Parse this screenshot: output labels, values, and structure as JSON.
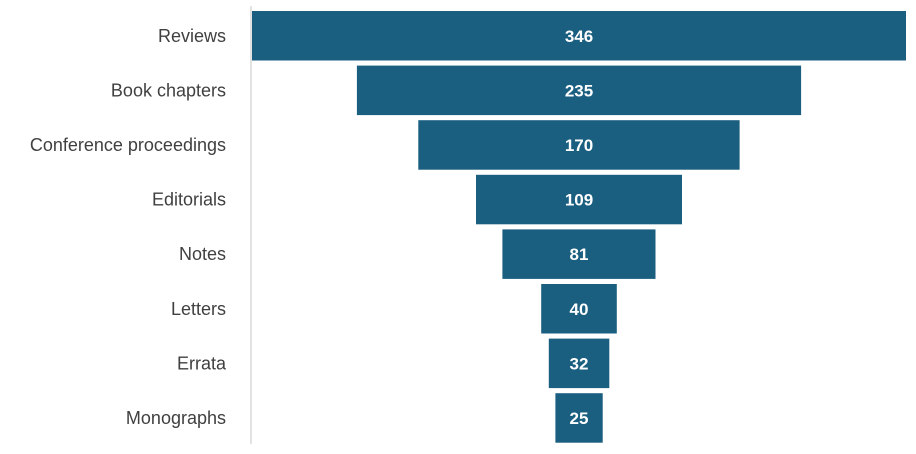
{
  "chart_data": {
    "type": "bar",
    "subtype": "funnel",
    "categories": [
      "Reviews",
      "Book chapters",
      "Conference proceedings",
      "Editorials",
      "Notes",
      "Letters",
      "Errata",
      "Monographs"
    ],
    "values": [
      346,
      235,
      170,
      109,
      81,
      40,
      32,
      25
    ],
    "data_labels": [
      "346",
      "235",
      "170",
      "109",
      "81",
      "40",
      "32",
      "25"
    ],
    "title": "",
    "xlabel": "",
    "ylabel": "",
    "legend": "none",
    "grid": false,
    "bar_color": "#1a5e80",
    "label_color": "#ffffff",
    "category_text_color": "#404040",
    "axis_line_color": "#d9d9d9"
  }
}
